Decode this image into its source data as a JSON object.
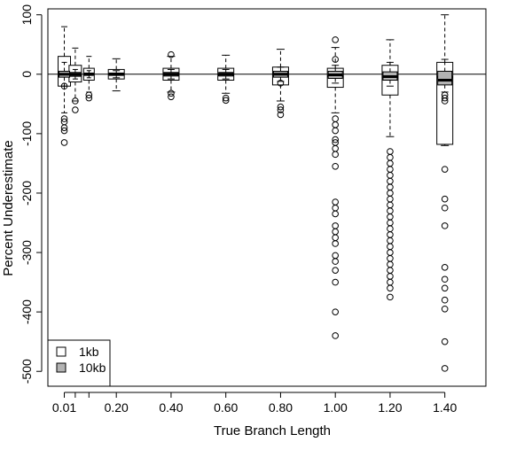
{
  "chart_data": {
    "type": "boxplot",
    "xlabel": "True Branch Length",
    "ylabel": "Percent Underestimate",
    "ylim": [
      -525,
      110
    ],
    "xlim": [
      -0.05,
      1.55
    ],
    "x_ticks": [
      0.01,
      0.05,
      0.1,
      0.2,
      0.4,
      0.6,
      0.8,
      1.0,
      1.2,
      1.4
    ],
    "x_tick_labels": [
      "0.01",
      "",
      "",
      "0.20",
      "0.40",
      "0.60",
      "0.80",
      "1.00",
      "1.20",
      "1.40"
    ],
    "y_ticks": [
      100,
      0,
      -100,
      -200,
      -300,
      -400,
      -500
    ],
    "reference_line": 0,
    "grid": false,
    "legend": {
      "position": "bottom-left",
      "entries": [
        {
          "label": "1kb",
          "fill": "#ffffff"
        },
        {
          "label": "10kb",
          "fill": "#b3b3b3"
        }
      ]
    },
    "series": [
      {
        "name": "1kb",
        "fill": "#ffffff",
        "boxes": [
          {
            "x": 0.01,
            "whisker_low": -65,
            "q1": -20,
            "median": -2,
            "q3": 30,
            "whisker_high": 80,
            "outliers": [
              -80,
              -90,
              -95,
              -115,
              -75
            ]
          },
          {
            "x": 0.05,
            "whisker_low": -45,
            "q1": -13,
            "median": -2,
            "q3": 15,
            "whisker_high": 44,
            "outliers": [
              -45,
              -60
            ]
          },
          {
            "x": 0.1,
            "whisker_low": -30,
            "q1": -10,
            "median": 0,
            "q3": 10,
            "whisker_high": 30,
            "outliers": [
              -35,
              -40
            ]
          },
          {
            "x": 0.2,
            "whisker_low": -28,
            "q1": -8,
            "median": 0,
            "q3": 8,
            "whisker_high": 26,
            "outliers": []
          },
          {
            "x": 0.4,
            "whisker_low": -30,
            "q1": -10,
            "median": 0,
            "q3": 10,
            "whisker_high": 30,
            "outliers": [
              33,
              -32,
              -38
            ]
          },
          {
            "x": 0.6,
            "whisker_low": -32,
            "q1": -10,
            "median": -1,
            "q3": 10,
            "whisker_high": 32,
            "outliers": [
              -40,
              -44
            ]
          },
          {
            "x": 0.8,
            "whisker_low": -45,
            "q1": -18,
            "median": 0,
            "q3": 12,
            "whisker_high": 42,
            "outliers": [
              -55,
              -60,
              -68
            ]
          },
          {
            "x": 1.0,
            "whisker_low": -65,
            "q1": -22,
            "median": -3,
            "q3": 10,
            "whisker_high": 45,
            "outliers": [
              58,
              -75,
              -85,
              -95,
              -110,
              -115,
              -125,
              -135,
              -155,
              -215,
              -225,
              -235,
              -255,
              -265,
              -275,
              -285,
              -305,
              -315,
              -330,
              -350,
              -400,
              -440
            ]
          },
          {
            "x": 1.2,
            "whisker_low": -105,
            "q1": -35,
            "median": -5,
            "q3": 15,
            "whisker_high": 58,
            "outliers": [
              -130,
              -140,
              -150,
              -160,
              -170,
              -180,
              -190,
              -200,
              -210,
              -220,
              -230,
              -240,
              -250,
              -260,
              -270,
              -280,
              -290,
              -300,
              -310,
              -320,
              -330,
              -340,
              -350,
              -360,
              -375
            ]
          },
          {
            "x": 1.4,
            "whisker_low": -120,
            "q1": -118,
            "median": -5,
            "q3": 20,
            "whisker_high": 100,
            "outliers": [
              -160,
              -210,
              -225,
              -255,
              -325,
              -345,
              -360,
              -380,
              -395,
              -450,
              -495
            ]
          }
        ]
      },
      {
        "name": "10kb",
        "fill": "#b3b3b3",
        "boxes": [
          {
            "x": 0.01,
            "whisker_low": -20,
            "q1": -5,
            "median": 0,
            "q3": 5,
            "whisker_high": 20,
            "outliers": [
              -20
            ]
          },
          {
            "x": 0.05,
            "whisker_low": -8,
            "q1": -3,
            "median": 0,
            "q3": 3,
            "whisker_high": 8,
            "outliers": []
          },
          {
            "x": 0.1,
            "whisker_low": -6,
            "q1": -2,
            "median": 0,
            "q3": 2,
            "whisker_high": 6,
            "outliers": []
          },
          {
            "x": 0.2,
            "whisker_low": -6,
            "q1": -2,
            "median": 0,
            "q3": 2,
            "whisker_high": 6,
            "outliers": []
          },
          {
            "x": 0.4,
            "whisker_low": -8,
            "q1": -3,
            "median": 0,
            "q3": 3,
            "whisker_high": 8,
            "outliers": []
          },
          {
            "x": 0.6,
            "whisker_low": -8,
            "q1": -3,
            "median": 0,
            "q3": 3,
            "whisker_high": 8,
            "outliers": []
          },
          {
            "x": 0.8,
            "whisker_low": -12,
            "q1": -5,
            "median": 0,
            "q3": 5,
            "whisker_high": 12,
            "outliers": [
              -15
            ]
          },
          {
            "x": 1.0,
            "whisker_low": -15,
            "q1": -7,
            "median": -1,
            "q3": 5,
            "whisker_high": 15,
            "outliers": [
              25
            ]
          },
          {
            "x": 1.2,
            "whisker_low": -20,
            "q1": -10,
            "median": -4,
            "q3": 4,
            "whisker_high": 20,
            "outliers": []
          },
          {
            "x": 1.4,
            "whisker_low": -30,
            "q1": -18,
            "median": -10,
            "q3": 5,
            "whisker_high": 25,
            "outliers": [
              -35,
              -40,
              -45
            ]
          }
        ]
      }
    ]
  }
}
